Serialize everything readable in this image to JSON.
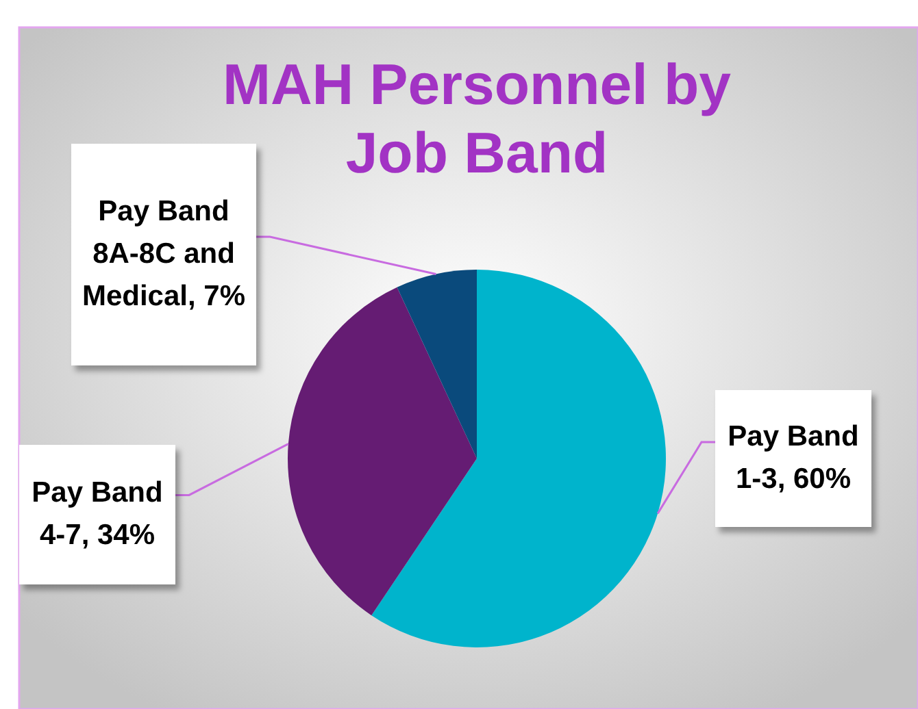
{
  "chart_data": {
    "type": "pie",
    "title": "MAH Personnel by Job Band",
    "categories": [
      "Pay Band 1-3",
      "Pay Band 4-7",
      "Pay Band 8A-8C and Medical"
    ],
    "values": [
      60,
      34,
      7
    ],
    "value_labels": [
      "60%",
      "34%",
      "7%"
    ],
    "colors": [
      "#00b4cc",
      "#651c73",
      "#0a4a7c"
    ]
  }
}
